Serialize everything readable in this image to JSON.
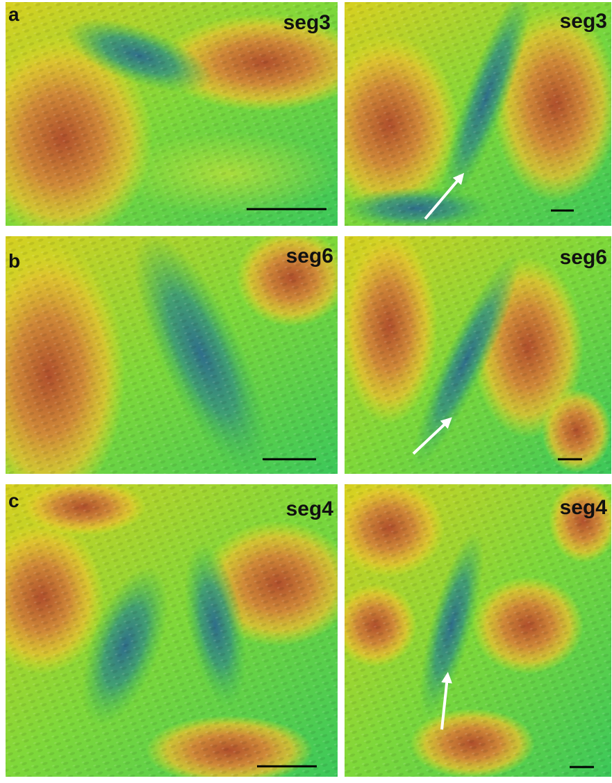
{
  "rows": [
    {
      "label": "a",
      "left_title": "seg3",
      "right_title": "seg3"
    },
    {
      "label": "b",
      "left_title": "seg6",
      "right_title": "seg6"
    },
    {
      "label": "c",
      "left_title": "seg4",
      "right_title": "seg4"
    }
  ]
}
